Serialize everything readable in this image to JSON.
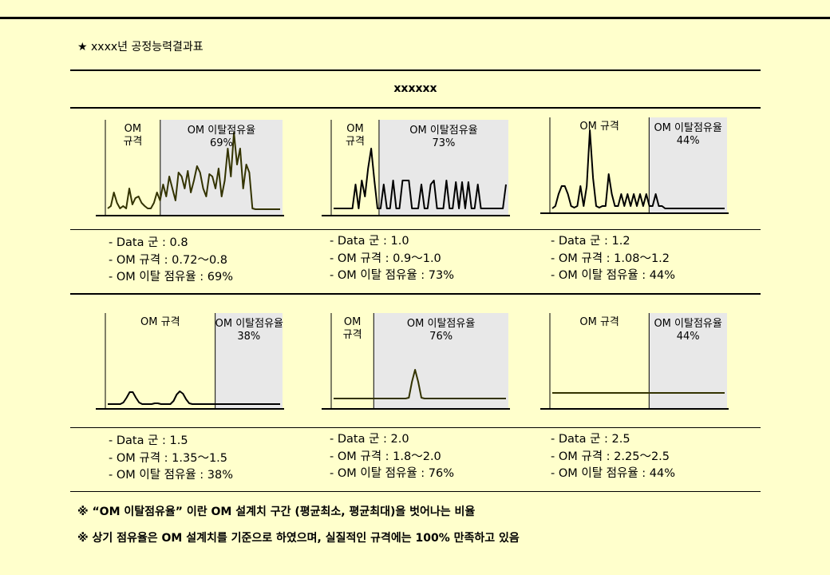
{
  "page": {
    "title": "★ xxxx년 공정능력결과표",
    "table_header": "xxxxxx",
    "notes": [
      "※ “OM 이탈점유율” 이란 OM 설계치 구간 (평균최소, 평균최대)을 벗어나는 비율",
      "※ 상기 점유율은 OM 설계치를 기준으로 하였으며, 실질적인 규격에는 100% 만족하고 있음"
    ]
  },
  "chart_data": [
    {
      "type": "line",
      "spec_label": "OM\n규격",
      "outside_label": "OM 이탈점유율",
      "outside_value": "69%",
      "outside_percent": 69,
      "data_group": "0.8",
      "spec_range": [
        0.72,
        0.8
      ],
      "info": [
        "- Data 군 : 0.8",
        "- OM 규격 : 0.72～0.8",
        "- OM 이탈 점유율 : 69%"
      ],
      "series": [
        {
          "color": "#333300",
          "values": [
            0.05,
            0.08,
            0.25,
            0.12,
            0.05,
            0.08,
            0.05,
            0.3,
            0.1,
            0.18,
            0.2,
            0.12,
            0.08,
            0.05,
            0.05,
            0.12,
            0.25,
            0.15,
            0.35,
            0.2,
            0.45,
            0.3,
            0.15,
            0.5,
            0.45,
            0.3,
            0.52,
            0.25,
            0.4,
            0.58,
            0.5,
            0.3,
            0.2,
            0.48,
            0.45,
            0.3,
            0.55,
            0.2,
            0.4,
            0.8,
            0.45,
            1.0,
            0.6,
            0.8,
            0.3,
            0.6,
            0.5,
            0.05,
            0.04,
            0.04,
            0.04,
            0.04,
            0.04,
            0.04,
            0.04,
            0.04,
            0.04
          ]
        }
      ]
    },
    {
      "type": "line",
      "spec_label": "OM\n규격",
      "outside_label": "OM 이탈점유율",
      "outside_value": "73%",
      "outside_percent": 73,
      "data_group": "1.0",
      "spec_range": [
        0.9,
        1.0
      ],
      "info": [
        "- Data 군 : 1.0",
        "- OM 규격 : 0.9～1.0",
        "- OM 이탈 점유율 : 73%"
      ],
      "series": [
        {
          "color": "#000000",
          "values": [
            0.05,
            0.05,
            0.05,
            0.05,
            0.05,
            0.05,
            0.05,
            0.35,
            0.05,
            0.4,
            0.2,
            0.55,
            0.8,
            0.4,
            0.05,
            0.05,
            0.35,
            0.05,
            0.05,
            0.4,
            0.05,
            0.05,
            0.4,
            0.4,
            0.4,
            0.05,
            0.05,
            0.05,
            0.35,
            0.05,
            0.05,
            0.35,
            0.4,
            0.05,
            0.05,
            0.05,
            0.4,
            0.05,
            0.05,
            0.38,
            0.05,
            0.38,
            0.05,
            0.38,
            0.05,
            0.05,
            0.35,
            0.05,
            0.05,
            0.05,
            0.05,
            0.05,
            0.05,
            0.05,
            0.05,
            0.35
          ]
        }
      ]
    },
    {
      "type": "line",
      "spec_label": "OM 규격",
      "outside_label": "OM 이탈점유율",
      "outside_value": "44%",
      "outside_percent": 44,
      "data_group": "1.2",
      "spec_range": [
        1.08,
        1.2
      ],
      "info": [
        "- Data 군 : 1.2",
        "- OM 규격 : 1.08～1.2",
        "- OM 이탈 점유율 : 44%"
      ],
      "series": [
        {
          "color": "#000000",
          "values": [
            0.02,
            0.05,
            0.2,
            0.3,
            0.3,
            0.2,
            0.05,
            0.03,
            0.05,
            0.3,
            0.05,
            0.3,
            1.0,
            0.4,
            0.05,
            0.03,
            0.05,
            0.05,
            0.45,
            0.2,
            0.05,
            0.05,
            0.2,
            0.05,
            0.2,
            0.05,
            0.2,
            0.05,
            0.2,
            0.05,
            0.2,
            0.05,
            0.05,
            0.2,
            0.05,
            0.05,
            0.02,
            0.02,
            0.02,
            0.02,
            0.02,
            0.02,
            0.02,
            0.02,
            0.02,
            0.02,
            0.02,
            0.02,
            0.02,
            0.02,
            0.02,
            0.02,
            0.02,
            0.02,
            0.02,
            0.02
          ]
        }
      ]
    },
    {
      "type": "line",
      "spec_label": "OM 규격",
      "outside_label": "OM 이탈점유율",
      "outside_value": "38%",
      "outside_percent": 38,
      "data_group": "1.5",
      "spec_range": [
        1.35,
        1.5
      ],
      "info": [
        "- Data 군 : 1.5",
        "- OM 규격 : 1.35～1.5",
        "- OM 이탈 점유율 : 38%"
      ],
      "series": [
        {
          "color": "#000000",
          "values": [
            0.02,
            0.02,
            0.02,
            0.02,
            0.02,
            0.04,
            0.1,
            0.17,
            0.17,
            0.1,
            0.04,
            0.02,
            0.02,
            0.02,
            0.02,
            0.03,
            0.03,
            0.02,
            0.02,
            0.02,
            0.02,
            0.06,
            0.14,
            0.18,
            0.15,
            0.08,
            0.03,
            0.02,
            0.02,
            0.02,
            0.02,
            0.02,
            0.02,
            0.02,
            0.02,
            0.02,
            0.02,
            0.02,
            0.02,
            0.02,
            0.02,
            0.02,
            0.02,
            0.02,
            0.02,
            0.02,
            0.02,
            0.02,
            0.02,
            0.02,
            0.02,
            0.02,
            0.02,
            0.02,
            0.02,
            0.02
          ]
        }
      ]
    },
    {
      "type": "line",
      "spec_label": "OM\n규격",
      "outside_label": "OM 이탈점유율",
      "outside_value": "76%",
      "outside_percent": 76,
      "data_group": "2.0",
      "spec_range": [
        1.8,
        2.0
      ],
      "info": [
        "- Data 군 : 2.0",
        "- OM 규격 : 1.8～2.0",
        "- OM 이탈 점유율 : 76%"
      ],
      "series": [
        {
          "color": "#333300",
          "values": [
            0.09,
            0.09,
            0.09,
            0.09,
            0.09,
            0.09,
            0.09,
            0.09,
            0.09,
            0.09,
            0.09,
            0.09,
            0.09,
            0.09,
            0.09,
            0.09,
            0.09,
            0.09,
            0.09,
            0.09,
            0.09,
            0.09,
            0.09,
            0.09,
            0.1,
            0.3,
            0.45,
            0.3,
            0.1,
            0.09,
            0.09,
            0.09,
            0.09,
            0.09,
            0.09,
            0.09,
            0.09,
            0.09,
            0.09,
            0.09,
            0.09,
            0.09,
            0.09,
            0.09,
            0.09,
            0.09,
            0.09,
            0.09,
            0.09,
            0.09,
            0.09,
            0.09,
            0.09,
            0.09,
            0.09,
            0.09
          ]
        }
      ]
    },
    {
      "type": "line",
      "spec_label": "OM 규격",
      "outside_label": "OM 이탈점유율",
      "outside_value": "44%",
      "outside_percent": 44,
      "data_group": "2.5",
      "spec_range": [
        2.25,
        2.5
      ],
      "info": [
        "- Data 군 : 2.5",
        "- OM 규격 : 2.25～2.5",
        "- OM 이탈 점유율 : 44%"
      ],
      "series": [
        {
          "color": "#333300",
          "values": [
            0.16,
            0.16,
            0.16,
            0.16,
            0.16,
            0.16,
            0.16,
            0.16,
            0.16,
            0.16,
            0.16,
            0.16,
            0.16,
            0.16,
            0.16,
            0.16,
            0.16,
            0.16,
            0.16,
            0.16,
            0.16,
            0.16,
            0.16,
            0.16,
            0.16,
            0.16,
            0.16,
            0.16,
            0.16,
            0.16,
            0.16,
            0.16,
            0.16,
            0.16,
            0.16,
            0.16,
            0.16,
            0.16,
            0.16,
            0.16,
            0.16,
            0.16,
            0.16,
            0.16,
            0.16,
            0.16,
            0.16,
            0.16,
            0.16,
            0.16,
            0.16,
            0.16,
            0.16,
            0.16,
            0.16,
            0.16
          ]
        }
      ]
    }
  ]
}
